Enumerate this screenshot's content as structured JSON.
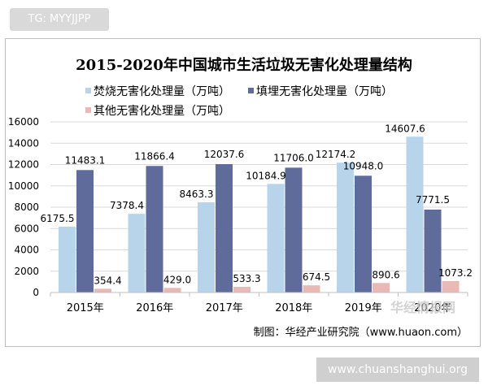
{
  "overlay_tag": "TG: MYYJJPP",
  "site_tag": "www.chuanshanghui.org",
  "colors": {
    "series1": "#b7d4ea",
    "series2": "#5f6c9b",
    "series3": "#e8b9b5",
    "grid": "#d9d9d9",
    "text": "#000000"
  },
  "chart_data": {
    "type": "bar",
    "title": "2015-2020年中国城市生活垃圾无害化处理量结构",
    "categories": [
      "2015年",
      "2016年",
      "2017年",
      "2018年",
      "2019年",
      "2020年"
    ],
    "series": [
      {
        "name": "焚烧无害化处理量（万吨）",
        "values": [
          6175.5,
          7378.4,
          8463.3,
          10184.9,
          12174.2,
          14607.6
        ]
      },
      {
        "name": "填埋无害化处理量（万吨）",
        "values": [
          11483.1,
          11866.4,
          12037.6,
          11706.0,
          10948.0,
          7771.5
        ]
      },
      {
        "name": "其他无害化处理量（万吨）",
        "values": [
          354.4,
          429.0,
          533.3,
          674.5,
          890.6,
          1073.2
        ]
      }
    ],
    "data_labels": [
      [
        "6175.5",
        "7378.4",
        "8463.3",
        "10184.9",
        "12174.2",
        "14607.6"
      ],
      [
        "11483.1",
        "11866.4",
        "12037.6",
        "11706.0",
        "10948.0",
        "7771.5"
      ],
      [
        "354.4",
        "429.0",
        "533.3",
        "674.5",
        "890.6",
        "1073.2"
      ]
    ],
    "yticks": [
      0,
      2000,
      4000,
      6000,
      8000,
      10000,
      12000,
      14000,
      16000
    ],
    "ylim": [
      0,
      16000
    ],
    "grid": true,
    "legend_position": "top",
    "source": "制图：华经产业研究院（www.huaon.com）",
    "watermark": "华经情报网"
  }
}
